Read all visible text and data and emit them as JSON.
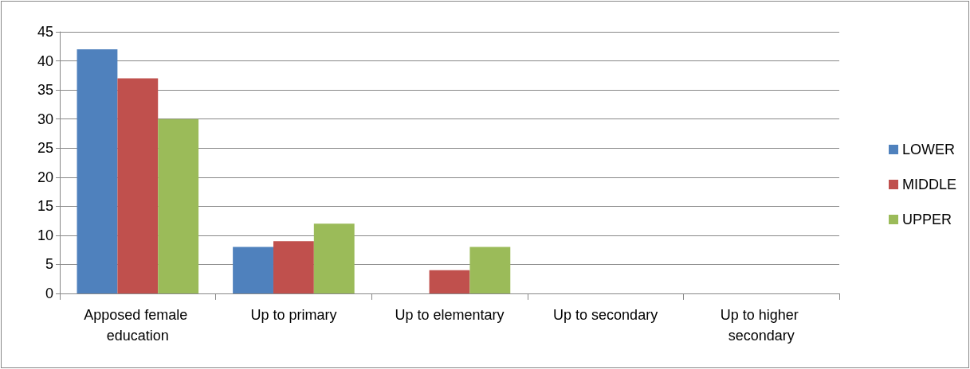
{
  "chart_data": {
    "type": "bar",
    "categories": [
      "Apposed female education",
      "Up to primary",
      "Up to elementary",
      "Up to secondary",
      "Up to higher secondary"
    ],
    "series": [
      {
        "name": "LOWER",
        "color": "#4f81bd",
        "values": [
          42,
          8,
          0,
          0,
          0
        ]
      },
      {
        "name": "MIDDLE",
        "color": "#c0504d",
        "values": [
          37,
          9,
          4,
          0,
          0
        ]
      },
      {
        "name": "UPPER",
        "color": "#9bbb59",
        "values": [
          30,
          12,
          8,
          0,
          0
        ]
      }
    ],
    "ylim": [
      0,
      45
    ],
    "yticks": [
      0,
      5,
      10,
      15,
      20,
      25,
      30,
      35,
      40,
      45
    ],
    "grid": "y",
    "legend": "right"
  }
}
